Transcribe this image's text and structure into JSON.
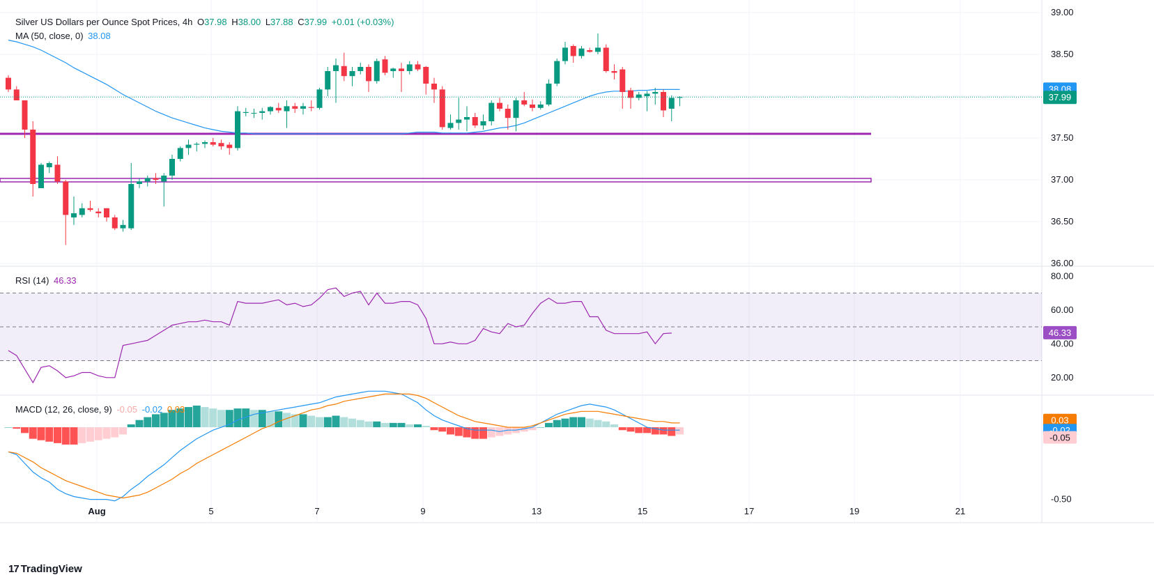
{
  "header": {
    "title": "Silver US Dollars per Ounce Spot Prices, 4h",
    "o_label": "O",
    "o": "37.98",
    "h_label": "H",
    "h": "38.00",
    "l_label": "L",
    "l": "37.88",
    "c_label": "C",
    "c": "37.99",
    "change": "+0.01 (+0.03%)",
    "ma_label": "MA (50, close, 0)",
    "ma_value": "38.08",
    "rsi_label": "RSI (14)",
    "rsi_value": "46.33",
    "macd_label": "MACD (12, 26, close, 9)",
    "macd_hist": "-0.05",
    "macd_line": "-0.02",
    "macd_signal": "0.03"
  },
  "brand": {
    "name": "TradingView",
    "logo": "tv-logo-icon"
  },
  "colors": {
    "up": "#089981",
    "down": "#f23645",
    "ma": "#2196f3",
    "rsi": "#9c27b0",
    "signal": "#f57c00",
    "macd": "#2196f3",
    "support": "#9c27b0",
    "hist_up_strong": "#26a69a",
    "hist_up_weak": "#b2dfdb",
    "hist_down_strong": "#ff5252",
    "hist_down_weak": "#ffcdd2"
  },
  "chart_data": {
    "type": "candlestick",
    "title": "Silver US Dollars per Ounce Spot Prices, 4h",
    "x_ticks": [
      "Aug",
      "5",
      "7",
      "9",
      "13",
      "15",
      "17",
      "19",
      "21"
    ],
    "price_axis": {
      "ticks": [
        "39.00",
        "38.50",
        "38.00",
        "37.50",
        "37.00",
        "36.50",
        "36.00"
      ],
      "ylim": [
        36.0,
        39.0
      ]
    },
    "price_tags": {
      "ma": "38.08",
      "close": "37.99"
    },
    "support_lines": [
      37.55,
      37.0
    ],
    "candles": [
      [
        38.22,
        38.25,
        38.05,
        38.08
      ],
      [
        38.08,
        38.12,
        37.95,
        37.95
      ],
      [
        37.95,
        37.95,
        37.5,
        37.6
      ],
      [
        37.6,
        37.7,
        36.8,
        36.95
      ],
      [
        36.9,
        37.2,
        36.9,
        37.18
      ],
      [
        37.15,
        37.22,
        37.08,
        37.2
      ],
      [
        37.18,
        37.28,
        36.95,
        36.98
      ],
      [
        36.98,
        37.0,
        36.22,
        36.58
      ],
      [
        36.55,
        36.8,
        36.46,
        36.6
      ],
      [
        36.58,
        36.72,
        36.55,
        36.66
      ],
      [
        36.66,
        36.75,
        36.62,
        36.64
      ],
      [
        36.62,
        36.66,
        36.55,
        36.6
      ],
      [
        36.66,
        36.66,
        36.5,
        36.55
      ],
      [
        36.55,
        36.58,
        36.4,
        36.42
      ],
      [
        36.42,
        36.52,
        36.38,
        36.46
      ],
      [
        36.42,
        37.2,
        36.4,
        36.95
      ],
      [
        36.95,
        37.02,
        36.9,
        36.98
      ],
      [
        36.98,
        37.05,
        36.92,
        37.02
      ],
      [
        37.02,
        37.08,
        36.95,
        37.0
      ],
      [
        36.98,
        37.08,
        36.68,
        37.05
      ],
      [
        37.05,
        37.3,
        37.0,
        37.25
      ],
      [
        37.25,
        37.4,
        37.22,
        37.38
      ],
      [
        37.38,
        37.48,
        37.3,
        37.42
      ],
      [
        37.42,
        37.45,
        37.34,
        37.43
      ],
      [
        37.43,
        37.47,
        37.38,
        37.45
      ],
      [
        37.45,
        37.5,
        37.4,
        37.42
      ],
      [
        37.44,
        37.48,
        37.36,
        37.4
      ],
      [
        37.42,
        37.45,
        37.3,
        37.38
      ],
      [
        37.38,
        37.88,
        37.35,
        37.82
      ],
      [
        37.8,
        37.86,
        37.76,
        37.81
      ],
      [
        37.8,
        37.85,
        37.74,
        37.8
      ],
      [
        37.8,
        37.86,
        37.72,
        37.82
      ],
      [
        37.82,
        37.88,
        37.78,
        37.87
      ],
      [
        37.86,
        37.92,
        37.8,
        37.83
      ],
      [
        37.82,
        37.95,
        37.62,
        37.88
      ],
      [
        37.88,
        37.92,
        37.8,
        37.85
      ],
      [
        37.85,
        37.92,
        37.78,
        37.88
      ],
      [
        37.87,
        37.95,
        37.82,
        37.86
      ],
      [
        37.86,
        38.1,
        37.84,
        38.08
      ],
      [
        38.08,
        38.35,
        38.0,
        38.3
      ],
      [
        38.3,
        38.45,
        37.92,
        38.37
      ],
      [
        38.36,
        38.52,
        38.18,
        38.24
      ],
      [
        38.24,
        38.35,
        38.12,
        38.3
      ],
      [
        38.3,
        38.4,
        38.26,
        38.35
      ],
      [
        38.35,
        38.38,
        38.05,
        38.18
      ],
      [
        38.18,
        38.45,
        38.15,
        38.42
      ],
      [
        38.44,
        38.48,
        38.25,
        38.28
      ],
      [
        38.3,
        38.34,
        38.22,
        38.33
      ],
      [
        38.33,
        38.4,
        38.05,
        38.3
      ],
      [
        38.3,
        38.42,
        38.26,
        38.38
      ],
      [
        38.38,
        38.42,
        38.3,
        38.32
      ],
      [
        38.35,
        38.36,
        38.02,
        38.15
      ],
      [
        38.15,
        38.22,
        37.92,
        38.08
      ],
      [
        38.08,
        38.12,
        37.6,
        37.63
      ],
      [
        37.62,
        37.78,
        37.6,
        37.68
      ],
      [
        37.68,
        37.98,
        37.6,
        37.72
      ],
      [
        37.72,
        37.88,
        37.58,
        37.75
      ],
      [
        37.75,
        37.8,
        37.62,
        37.65
      ],
      [
        37.65,
        37.78,
        37.6,
        37.7
      ],
      [
        37.7,
        37.95,
        37.65,
        37.92
      ],
      [
        37.92,
        37.98,
        37.82,
        37.85
      ],
      [
        37.85,
        37.9,
        37.6,
        37.74
      ],
      [
        37.74,
        37.98,
        37.58,
        37.95
      ],
      [
        37.95,
        38.05,
        37.88,
        37.9
      ],
      [
        37.9,
        37.96,
        37.82,
        37.86
      ],
      [
        37.86,
        37.94,
        37.84,
        37.9
      ],
      [
        37.9,
        38.2,
        37.88,
        38.15
      ],
      [
        38.15,
        38.45,
        38.12,
        38.42
      ],
      [
        38.42,
        38.65,
        38.38,
        38.58
      ],
      [
        38.6,
        38.62,
        38.4,
        38.48
      ],
      [
        38.48,
        38.6,
        38.45,
        38.57
      ],
      [
        38.55,
        38.58,
        38.52,
        38.53
      ],
      [
        38.53,
        38.75,
        38.5,
        38.58
      ],
      [
        38.58,
        38.62,
        38.28,
        38.3
      ],
      [
        38.3,
        38.38,
        38.2,
        38.28
      ],
      [
        38.32,
        38.35,
        37.85,
        38.05
      ],
      [
        38.07,
        38.1,
        37.85,
        37.98
      ],
      [
        37.98,
        38.05,
        37.95,
        38.02
      ],
      [
        38.0,
        38.06,
        37.82,
        38.03
      ],
      [
        38.03,
        38.1,
        37.9,
        38.05
      ],
      [
        38.05,
        38.08,
        37.75,
        37.83
      ],
      [
        37.85,
        38.01,
        37.7,
        37.98
      ],
      [
        37.98,
        38.0,
        37.88,
        37.99
      ]
    ],
    "ma50": [
      38.67,
      38.65,
      38.62,
      38.59,
      38.55,
      38.5,
      38.45,
      38.4,
      38.34,
      38.29,
      38.24,
      38.19,
      38.14,
      38.08,
      38.02,
      37.97,
      37.92,
      37.87,
      37.82,
      37.78,
      37.74,
      37.71,
      37.68,
      37.65,
      37.62,
      37.6,
      37.58,
      37.57,
      37.56,
      37.56,
      37.55,
      37.55,
      37.55,
      37.55,
      37.55,
      37.55,
      37.55,
      37.55,
      37.55,
      37.55,
      37.55,
      37.55,
      37.55,
      37.55,
      37.55,
      37.55,
      37.55,
      37.55,
      37.55,
      37.56,
      37.57,
      37.57,
      37.57,
      37.56,
      37.56,
      37.56,
      37.56,
      37.57,
      37.58,
      37.6,
      37.62,
      37.63,
      37.65,
      37.68,
      37.72,
      37.76,
      37.8,
      37.84,
      37.88,
      37.92,
      37.96,
      38.0,
      38.03,
      38.05,
      38.06,
      38.06,
      38.06,
      38.07,
      38.07,
      38.08,
      38.08,
      38.08,
      38.08
    ],
    "rsi": {
      "ticks": [
        "80.00",
        "60.00",
        "40.00",
        "20.00"
      ],
      "levels": [
        70,
        50,
        30
      ],
      "ylim": [
        10,
        83
      ],
      "values": [
        36,
        33,
        25,
        17,
        26,
        27,
        24,
        20,
        21,
        23,
        23,
        21,
        20,
        20,
        39,
        40,
        41,
        42,
        45,
        48,
        51,
        52,
        53,
        53,
        54,
        53,
        53,
        51,
        65,
        64,
        64,
        64,
        65,
        66,
        63,
        64,
        62,
        63,
        67,
        72,
        73,
        68,
        70,
        71,
        63,
        70,
        64,
        64,
        65,
        65,
        63,
        55,
        40,
        40,
        41,
        40,
        40,
        42,
        49,
        47,
        46,
        52,
        50,
        51,
        58,
        64,
        67,
        64,
        64,
        65,
        65,
        56,
        56,
        48,
        46,
        46,
        46,
        46,
        47,
        40,
        46,
        46.33
      ]
    },
    "macd": {
      "ticks": [
        "-0.50"
      ],
      "ylim": [
        -0.55,
        0.15
      ],
      "hist": [
        0.0,
        -0.01,
        -0.04,
        -0.08,
        -0.09,
        -0.1,
        -0.11,
        -0.12,
        -0.12,
        -0.11,
        -0.1,
        -0.09,
        -0.08,
        -0.07,
        -0.05,
        0.02,
        0.05,
        0.07,
        0.09,
        0.1,
        0.12,
        0.13,
        0.14,
        0.15,
        0.14,
        0.13,
        0.12,
        0.12,
        0.13,
        0.13,
        0.12,
        0.12,
        0.11,
        0.11,
        0.1,
        0.09,
        0.09,
        0.08,
        0.07,
        0.07,
        0.08,
        0.07,
        0.06,
        0.05,
        0.04,
        0.04,
        0.03,
        0.03,
        0.03,
        0.02,
        0.02,
        0.01,
        -0.02,
        -0.03,
        -0.05,
        -0.06,
        -0.07,
        -0.08,
        -0.08,
        -0.07,
        -0.06,
        -0.05,
        -0.04,
        -0.03,
        -0.02,
        0.0,
        0.03,
        0.05,
        0.06,
        0.07,
        0.07,
        0.06,
        0.05,
        0.04,
        0.02,
        -0.02,
        -0.03,
        -0.04,
        -0.04,
        -0.05,
        -0.05,
        -0.06,
        -0.05
      ],
      "macd_line": [
        -0.17,
        -0.19,
        -0.25,
        -0.31,
        -0.35,
        -0.38,
        -0.43,
        -0.46,
        -0.48,
        -0.49,
        -0.5,
        -0.5,
        -0.5,
        -0.51,
        -0.48,
        -0.43,
        -0.39,
        -0.34,
        -0.3,
        -0.26,
        -0.21,
        -0.16,
        -0.12,
        -0.08,
        -0.05,
        -0.02,
        0.0,
        0.02,
        0.05,
        0.07,
        0.09,
        0.1,
        0.11,
        0.12,
        0.13,
        0.14,
        0.15,
        0.16,
        0.17,
        0.19,
        0.21,
        0.22,
        0.23,
        0.24,
        0.25,
        0.25,
        0.25,
        0.24,
        0.23,
        0.2,
        0.17,
        0.12,
        0.08,
        0.05,
        0.03,
        0.01,
        -0.01,
        -0.02,
        -0.02,
        -0.02,
        -0.03,
        -0.02,
        -0.02,
        -0.01,
        0.0,
        0.03,
        0.06,
        0.09,
        0.11,
        0.13,
        0.15,
        0.16,
        0.15,
        0.14,
        0.12,
        0.09,
        0.06,
        0.03,
        0.0,
        -0.01,
        -0.02,
        -0.02,
        -0.02
      ],
      "signal_line": [
        -0.17,
        -0.18,
        -0.21,
        -0.24,
        -0.28,
        -0.31,
        -0.34,
        -0.37,
        -0.39,
        -0.41,
        -0.43,
        -0.45,
        -0.47,
        -0.48,
        -0.49,
        -0.48,
        -0.47,
        -0.45,
        -0.42,
        -0.39,
        -0.36,
        -0.32,
        -0.29,
        -0.25,
        -0.22,
        -0.19,
        -0.16,
        -0.13,
        -0.1,
        -0.07,
        -0.04,
        -0.01,
        0.01,
        0.04,
        0.06,
        0.08,
        0.1,
        0.12,
        0.13,
        0.15,
        0.16,
        0.18,
        0.19,
        0.2,
        0.21,
        0.22,
        0.23,
        0.23,
        0.23,
        0.23,
        0.22,
        0.2,
        0.17,
        0.14,
        0.11,
        0.08,
        0.06,
        0.04,
        0.03,
        0.02,
        0.01,
        0.0,
        0.0,
        0.0,
        0.01,
        0.03,
        0.05,
        0.07,
        0.09,
        0.1,
        0.11,
        0.11,
        0.11,
        0.1,
        0.09,
        0.08,
        0.07,
        0.06,
        0.05,
        0.04,
        0.04,
        0.03,
        0.03
      ],
      "tags": {
        "signal": "0.03",
        "macd": "-0.02",
        "hist": "-0.05"
      }
    }
  }
}
